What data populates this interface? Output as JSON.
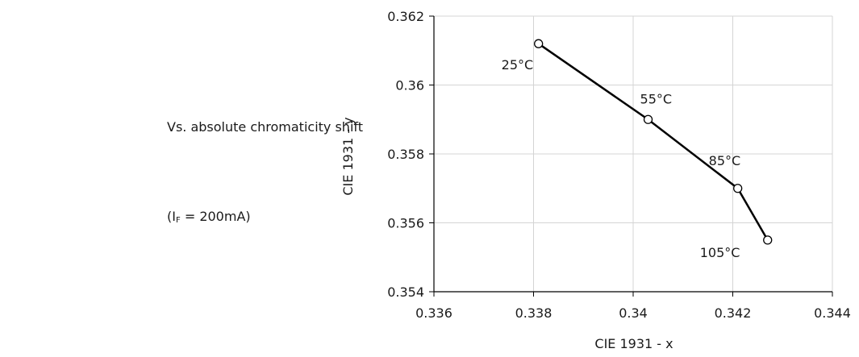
{
  "side": {
    "description": "Vs. absolute chromaticity shift",
    "condition_prefix": "(I",
    "condition_sub": "F",
    "condition_suffix": " = 200mA)"
  },
  "chart_data": {
    "type": "line",
    "title": "",
    "xlabel": "CIE 1931 - x",
    "ylabel": "CIE 1931 - y",
    "xlim": [
      0.336,
      0.344
    ],
    "ylim": [
      0.354,
      0.362
    ],
    "xticks": [
      0.336,
      0.338,
      0.34,
      0.342,
      0.344
    ],
    "xtick_labels": [
      "0.336",
      "0.338",
      "0.34",
      "0.342",
      "0.344"
    ],
    "yticks": [
      0.354,
      0.356,
      0.358,
      0.36,
      0.362
    ],
    "ytick_labels": [
      "0.354",
      "0.356",
      "0.358",
      "0.36",
      "0.362"
    ],
    "grid": true,
    "series": [
      {
        "points": [
          {
            "x": 0.3381,
            "y": 0.3612,
            "label": "25°C"
          },
          {
            "x": 0.3403,
            "y": 0.359,
            "label": "55°C"
          },
          {
            "x": 0.3421,
            "y": 0.357,
            "label": "85°C"
          },
          {
            "x": 0.3427,
            "y": 0.3555,
            "label": "105°C"
          }
        ]
      }
    ],
    "line_color": "#000000",
    "grid_color": "#d4d4d4"
  }
}
